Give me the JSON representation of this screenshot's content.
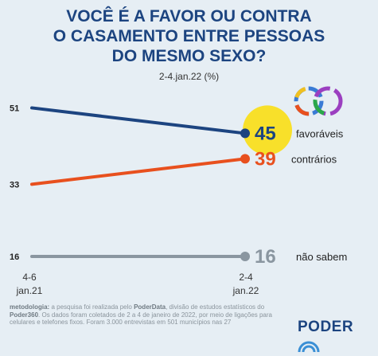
{
  "title_lines": [
    "VOCÊ É A FAVOR OU CONTRA",
    "O CASAMENTO ENTRE PESSOAS",
    "DO MESMO SEXO?"
  ],
  "subtitle": "2-4.jan.22 (%)",
  "colors": {
    "favoraveis": "#1c4480",
    "contrarios": "#e8501e",
    "nao_sabem": "#8a96a0",
    "highlight": "#f8e02a",
    "background": "#e6eef4"
  },
  "chart_data": {
    "type": "line",
    "title": "VOCÊ É A FAVOR OU CONTRA O CASAMENTO ENTRE PESSOAS DO MESMO SEXO?",
    "subtitle": "2-4.jan.22 (%)",
    "categories": [
      "4-6 jan.21",
      "2-4 jan.22"
    ],
    "category_labels": [
      [
        "4-6",
        "jan.21"
      ],
      [
        "2-4",
        "jan.22"
      ]
    ],
    "ylim": [
      0,
      60
    ],
    "grid": false,
    "series": [
      {
        "name": "favoráveis",
        "key": "favoraveis",
        "values": [
          51,
          45
        ],
        "start_label": "51",
        "end_label": "45"
      },
      {
        "name": "contrários",
        "key": "contrarios",
        "values": [
          33,
          39
        ],
        "start_label": "33",
        "end_label": "39"
      },
      {
        "name": "não sabem",
        "key": "nao_sabem",
        "values": [
          16,
          16
        ],
        "start_label": "16",
        "end_label": "16"
      }
    ]
  },
  "methodology": {
    "label": "metodologia:",
    "text_1": " a pesquisa foi realizada pelo ",
    "poderdata": "PoderData",
    "text_2": ", divisão de estudos estatísticos do ",
    "poder360": "Poder360",
    "text_3": ". Os dados foram coletados de 2 a 4 de janeiro de 2022, por meio de ligações para celulares e telefones fixos. Foram 3.000 entrevistas em 501 municípios nas 27"
  },
  "logo_text": "PODER"
}
